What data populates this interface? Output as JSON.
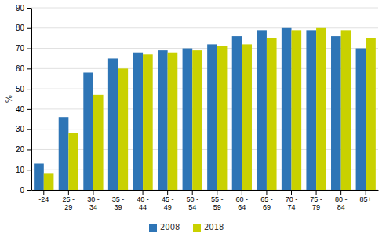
{
  "chart_data": {
    "type": "bar",
    "categories": [
      "-24",
      "25 -\n29",
      "30 -\n34",
      "35 -\n39",
      "40 -\n44",
      "45 -\n49",
      "50 -\n54",
      "55 -\n59",
      "60 -\n64",
      "65 -\n69",
      "70 -\n74",
      "75 -\n79",
      "80 -\n84",
      "85+"
    ],
    "series": [
      {
        "name": "2008",
        "color": "#2E75B6",
        "values": [
          13,
          36,
          58,
          65,
          68,
          69,
          70,
          72,
          76,
          79,
          80,
          79,
          76,
          70
        ]
      },
      {
        "name": "2018",
        "color": "#C9D100",
        "values": [
          8,
          28,
          47,
          60,
          67,
          68,
          69,
          71,
          72,
          75,
          79,
          80,
          79,
          75
        ]
      }
    ],
    "ylabel": "%",
    "ylim": [
      0,
      90
    ],
    "yticks": [
      0,
      10,
      20,
      30,
      40,
      50,
      60,
      70,
      80,
      90
    ],
    "grid": true,
    "legend": "bottom"
  }
}
